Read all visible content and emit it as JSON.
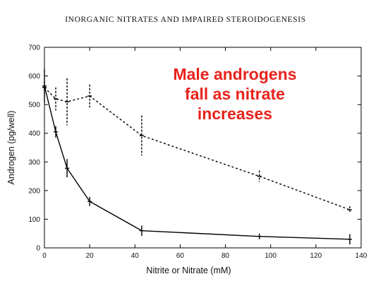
{
  "header": "INORGANIC NITRATES AND IMPAIRED STEROIDOGENESIS",
  "chart_data": {
    "type": "line",
    "title": "",
    "xlabel": "Nitrite or Nitrate (mM)",
    "ylabel": "Androgen (pg/well)",
    "xlim": [
      0,
      140
    ],
    "ylim": [
      0,
      700
    ],
    "xticks": [
      "0",
      "20",
      "40",
      "60",
      "80",
      "100",
      "120",
      "140"
    ],
    "yticks": [
      "0",
      "100",
      "200",
      "300",
      "400",
      "500",
      "600",
      "700"
    ],
    "grid": false,
    "annotation": [
      "Male androgens",
      "fall as nitrate",
      "increases"
    ],
    "series": [
      {
        "style": "solid",
        "color": "#000000",
        "x": [
          0,
          5,
          10,
          20,
          43,
          95,
          135
        ],
        "y": [
          565,
          405,
          278,
          162,
          60,
          40,
          30
        ],
        "err": [
          60,
          20,
          32,
          16,
          18,
          10,
          18
        ]
      },
      {
        "style": "dashed",
        "color": "#000000",
        "x": [
          0,
          5,
          10,
          20,
          43,
          95,
          135
        ],
        "y": [
          560,
          520,
          510,
          530,
          392,
          250,
          133
        ],
        "err": [
          20,
          40,
          82,
          40,
          70,
          20,
          12
        ]
      }
    ]
  }
}
